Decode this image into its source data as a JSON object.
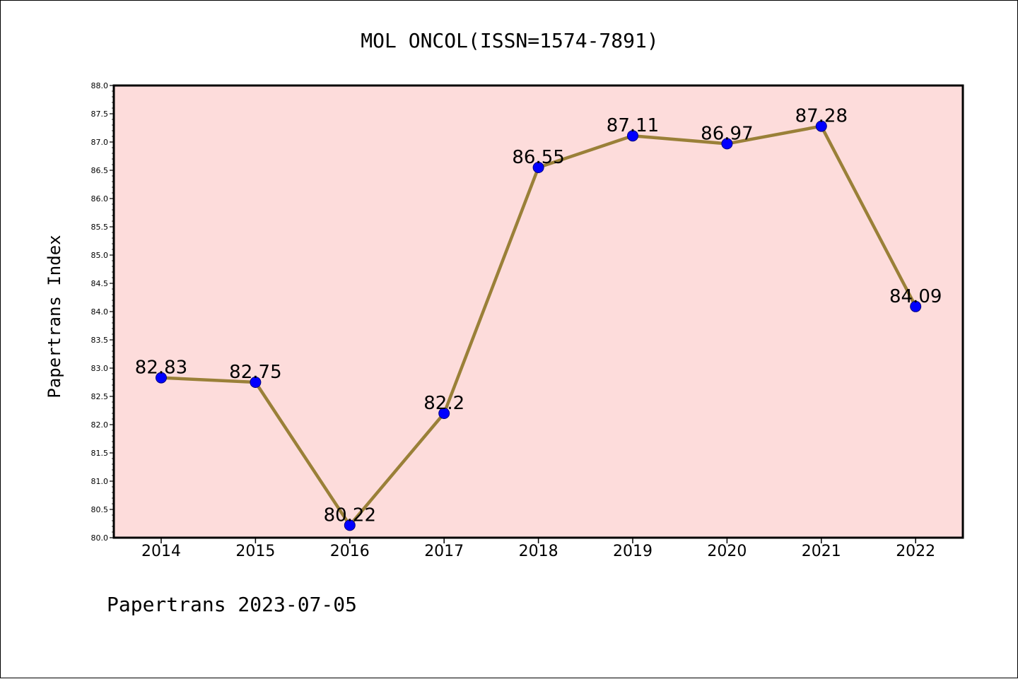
{
  "chart_data": {
    "type": "line",
    "title": "MOL ONCOL(ISSN=1574-7891)",
    "xlabel": "",
    "ylabel": "Papertrans Index",
    "footer": "Papertrans 2023-07-05",
    "categories": [
      "2014",
      "2015",
      "2016",
      "2017",
      "2018",
      "2019",
      "2020",
      "2021",
      "2022"
    ],
    "series": [
      {
        "values": [
          82.83,
          82.75,
          80.22,
          82.2,
          86.55,
          87.11,
          86.97,
          87.28,
          84.09
        ],
        "labels": [
          "82.83",
          "82.75",
          "80.22",
          "82.2",
          "86.55",
          "87.11",
          "86.97",
          "87.28",
          "84.09"
        ]
      }
    ],
    "ylim": [
      80.0,
      88.0
    ],
    "yticks": [
      "80.0",
      "80.5",
      "81.0",
      "81.5",
      "82.0",
      "82.5",
      "83.0",
      "83.5",
      "84.0",
      "84.5",
      "85.0",
      "85.5",
      "86.0",
      "86.5",
      "87.0",
      "87.5",
      "88.0"
    ],
    "grid": false,
    "colors": {
      "plot_background": "#fddcdb",
      "line": "#9a8038",
      "marker": "#0000ff",
      "marker_edge": "#000080"
    }
  }
}
